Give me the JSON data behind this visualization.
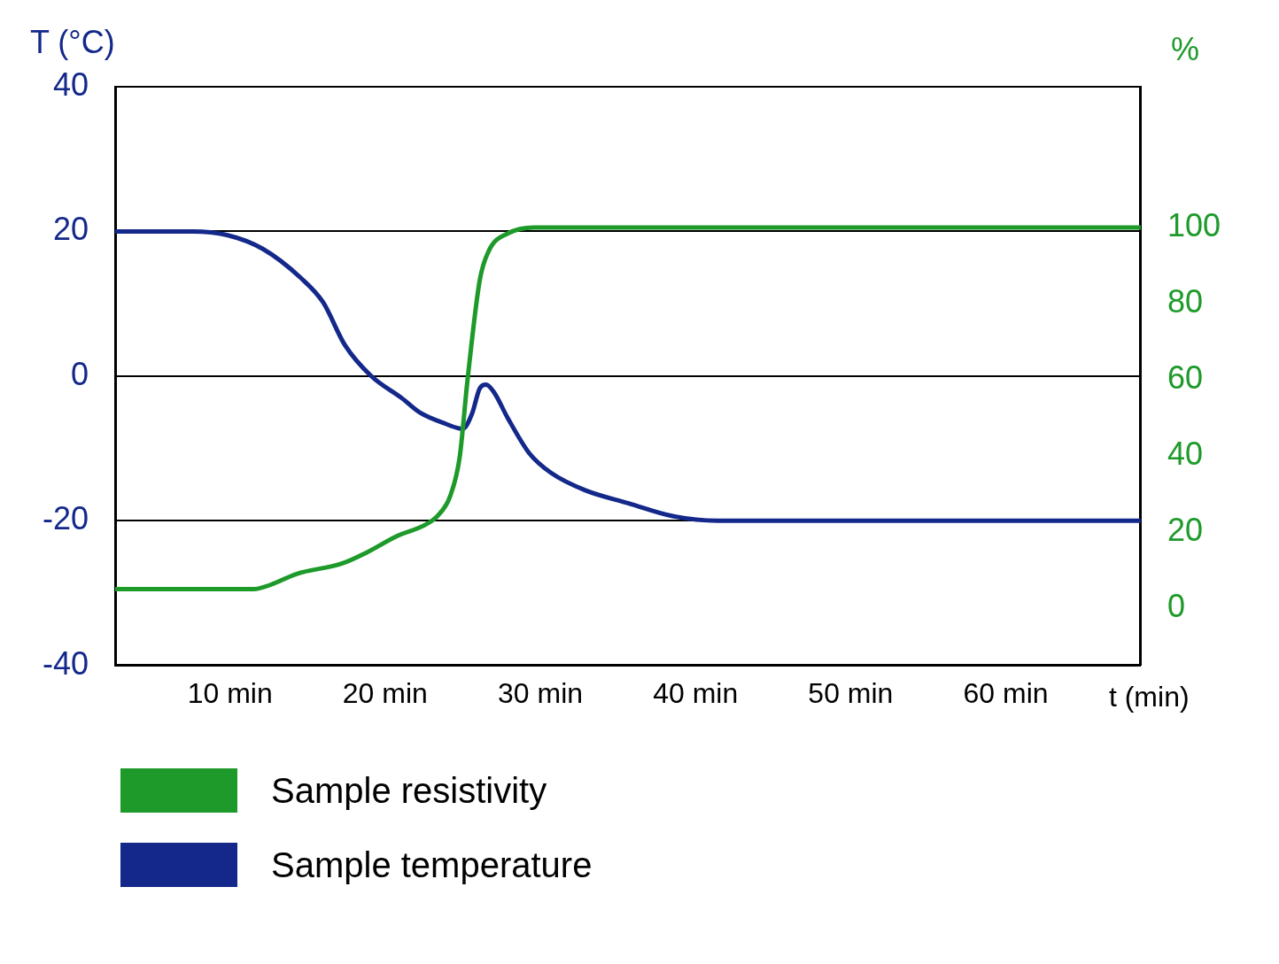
{
  "chart_data": {
    "type": "line",
    "xlabel": "t (min)",
    "ylabel": "T (°C)",
    "y2label": "%",
    "xlim": [
      2.6,
      68.7
    ],
    "xticks": [
      {
        "value": 10,
        "label": "10 min"
      },
      {
        "value": 20,
        "label": "20 min"
      },
      {
        "value": 30,
        "label": "30 min"
      },
      {
        "value": 40,
        "label": "40 min"
      },
      {
        "value": 50,
        "label": "50 min"
      },
      {
        "value": 60,
        "label": "60 min"
      }
    ],
    "ylim": [
      -40,
      40
    ],
    "yticks": [
      -40,
      -20,
      0,
      20,
      40
    ],
    "y2lim": [
      -14.9,
      136.9
    ],
    "y2ticks": [
      0,
      20,
      40,
      60,
      80,
      100
    ],
    "grid": "y",
    "legend": "bottom",
    "marker": "none",
    "line_style": "solid",
    "series": [
      {
        "name": "Sample resistivity",
        "color": "#1e9a2a",
        "axis": "y2",
        "x": [
          2.6,
          11.5,
          12.6,
          14.3,
          17.2,
          18.8,
          20.8,
          22.5,
          23.4,
          24.2,
          24.8,
          25.3,
          26.1,
          26.7,
          27.9,
          29.6,
          68.7
        ],
        "values": [
          5.1,
          5.1,
          6.2,
          9.1,
          11.8,
          14.7,
          19.1,
          21.8,
          24.4,
          29.6,
          39.6,
          59.6,
          86.2,
          94,
          98.4,
          100,
          100
        ]
      },
      {
        "name": "Sample temperature",
        "color": "#13288a",
        "axis": "y",
        "x": [
          2.6,
          7.6,
          9.8,
          12.1,
          14.6,
          16.0,
          17.4,
          19.1,
          21.1,
          22.2,
          23.9,
          25.0,
          25.6,
          26.1,
          26.5,
          27.0,
          27.9,
          29.3,
          30.7,
          32.9,
          35.7,
          38.6,
          41.4,
          68.7
        ],
        "values": [
          20,
          20,
          19.5,
          17.6,
          13.5,
          10.2,
          4.3,
          0,
          -3.1,
          -5,
          -6.6,
          -7.3,
          -5.2,
          -1.7,
          -1.2,
          -2.2,
          -5.8,
          -10.7,
          -13.4,
          -15.8,
          -17.6,
          -19.4,
          -20,
          -20
        ]
      }
    ]
  }
}
